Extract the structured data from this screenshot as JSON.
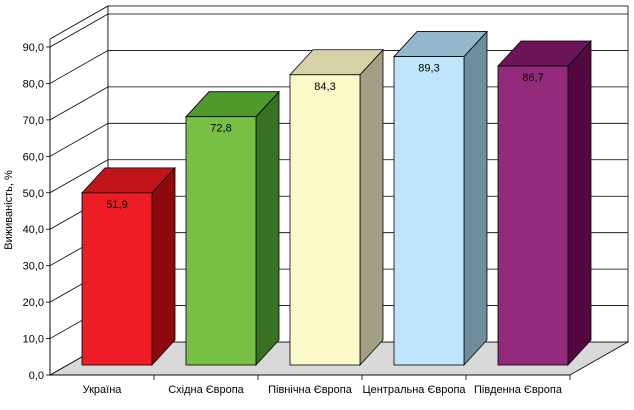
{
  "chart_data": {
    "type": "bar",
    "title": "",
    "xlabel": "",
    "ylabel": "Виживаність, %",
    "ylim": [
      0,
      90
    ],
    "yticks": [
      "0,0",
      "10,0",
      "20,0",
      "30,0",
      "40,0",
      "50,0",
      "60,0",
      "70,0",
      "80,0",
      "90,0"
    ],
    "grid": true,
    "style": "3d",
    "categories": [
      "Україна",
      "Східна Європа",
      "Північна Європа",
      "Центральна Європа",
      "Південна Європа"
    ],
    "values": [
      51.9,
      72.8,
      84.3,
      89.3,
      86.7
    ],
    "value_labels": [
      "51,9",
      "72,8",
      "84,3",
      "89,3",
      "86,7"
    ],
    "colors": [
      {
        "front": "#ee1c25",
        "side": "#8c0a0e",
        "top": "#c0141b"
      },
      {
        "front": "#77c043",
        "side": "#3a7122",
        "top": "#4f9a2c"
      },
      {
        "front": "#fcf9c9",
        "side": "#a39e84",
        "top": "#d6d1a6"
      },
      {
        "front": "#bfe5fa",
        "side": "#6f8d9e",
        "top": "#94b7cc"
      },
      {
        "front": "#932a7c",
        "side": "#530841",
        "top": "#6d1559"
      }
    ]
  }
}
